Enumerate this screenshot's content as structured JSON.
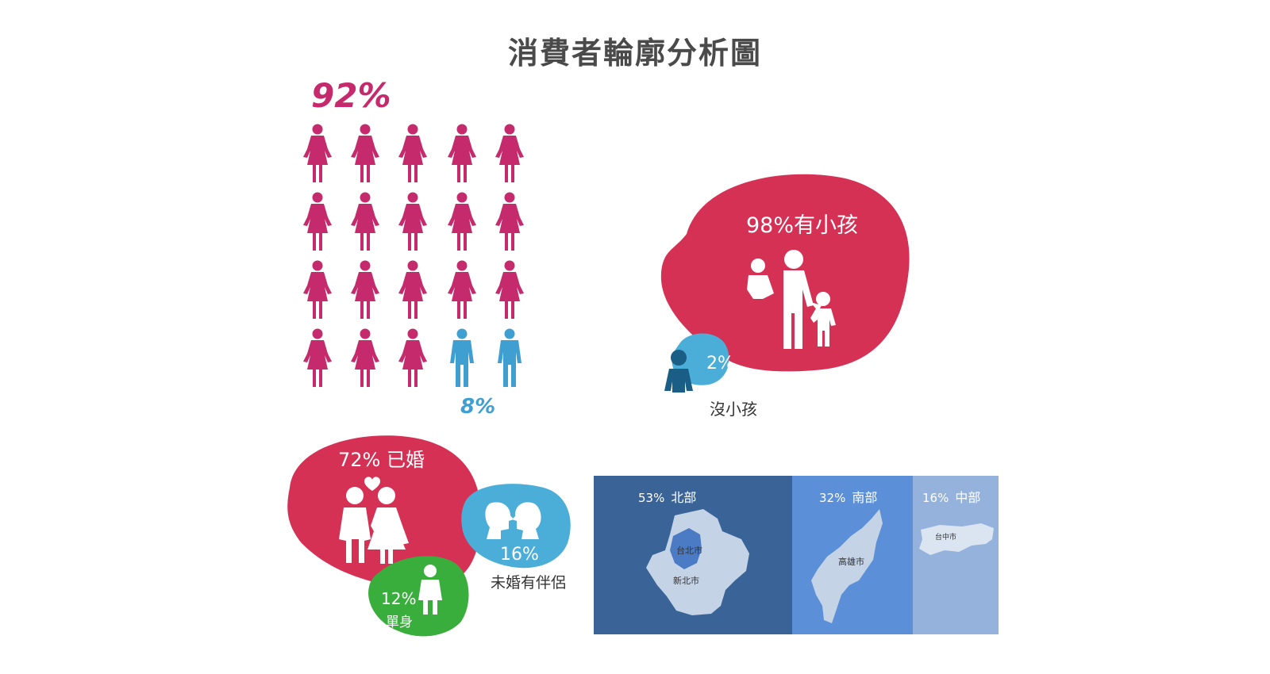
{
  "title": "消費者輪廓分析圖",
  "gender": {
    "female_pct": "92%",
    "male_pct": "8%",
    "female_color": "#c42a6c",
    "male_color": "#3f9fd1"
  },
  "children": {
    "with_kids": "98%有小孩",
    "no_kids_pct": "2%",
    "no_kids_label": "沒小孩"
  },
  "marital": {
    "married": "72% 已婚",
    "partner_pct": "16%",
    "partner_label": "未婚有伴侶",
    "single_pct": "12%",
    "single_label": "單身"
  },
  "regions": [
    {
      "pct": "53%",
      "name": "北部",
      "cities": [
        "台北市",
        "新北市"
      ]
    },
    {
      "pct": "32%",
      "name": "南部",
      "cities": [
        "高雄市"
      ]
    },
    {
      "pct": "16%",
      "name": "中部",
      "cities": [
        "台中市"
      ]
    }
  ]
}
